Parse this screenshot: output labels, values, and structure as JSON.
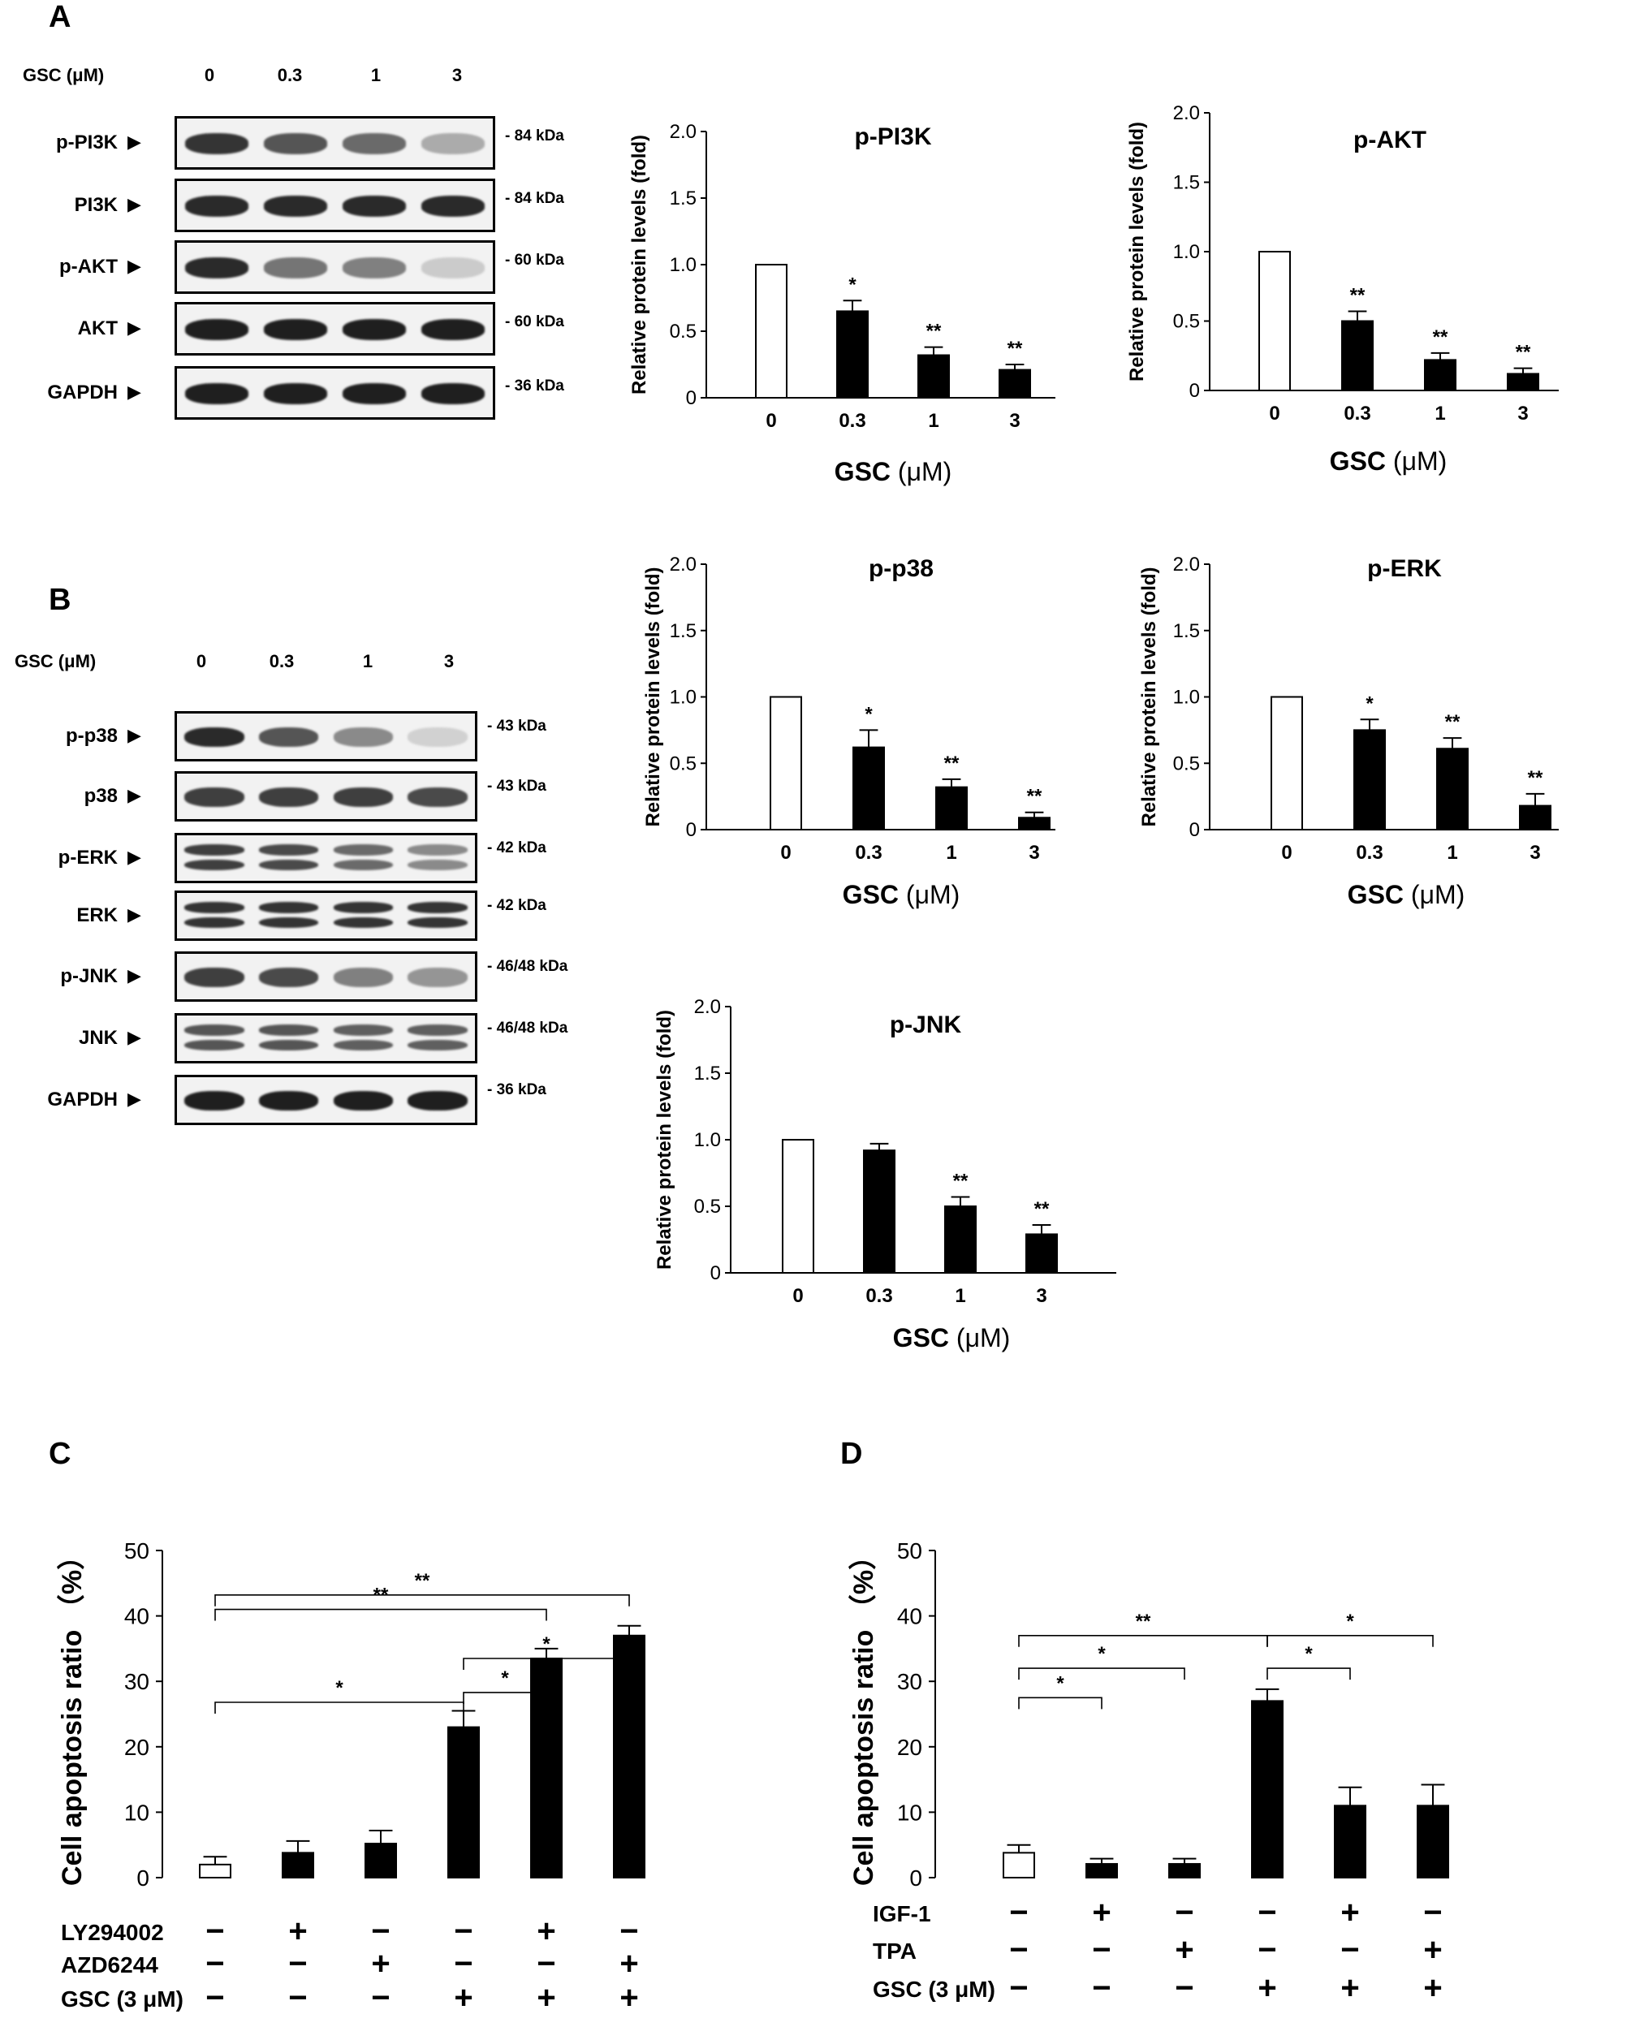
{
  "panels": {
    "A": "A",
    "B": "B",
    "C": "C",
    "D": "D"
  },
  "blot_a": {
    "gsc_label": "GSC (μM)",
    "conc": [
      "0",
      "0.3",
      "1",
      "3"
    ],
    "rows": [
      {
        "name": "p-PI3K",
        "kda": "- 84 kDa",
        "intensity": [
          0.85,
          0.7,
          0.6,
          0.3
        ],
        "double": false
      },
      {
        "name": "PI3K",
        "kda": "- 84 kDa",
        "intensity": [
          0.9,
          0.9,
          0.9,
          0.9
        ],
        "double": false
      },
      {
        "name": "p-AKT",
        "kda": "- 60 kDa",
        "intensity": [
          0.9,
          0.55,
          0.5,
          0.15
        ],
        "double": false
      },
      {
        "name": "AKT",
        "kda": "- 60 kDa",
        "intensity": [
          0.95,
          0.95,
          0.95,
          0.95
        ],
        "double": false
      },
      {
        "name": "GAPDH",
        "kda": "- 36 kDa",
        "intensity": [
          0.95,
          0.95,
          0.95,
          0.95
        ],
        "double": false
      }
    ]
  },
  "blot_b": {
    "gsc_label": "GSC (μM)",
    "conc": [
      "0",
      "0.3",
      "1",
      "3"
    ],
    "rows": [
      {
        "name": "p-p38",
        "kda": "- 43 kDa",
        "intensity": [
          0.9,
          0.7,
          0.45,
          0.12
        ],
        "double": false
      },
      {
        "name": "p38",
        "kda": "- 43 kDa",
        "intensity": [
          0.8,
          0.8,
          0.8,
          0.75
        ],
        "double": false
      },
      {
        "name": "p-ERK",
        "kda": "- 42 kDa",
        "intensity": [
          0.8,
          0.75,
          0.6,
          0.45
        ],
        "double": true
      },
      {
        "name": "ERK",
        "kda": "- 42 kDa",
        "intensity": [
          0.85,
          0.85,
          0.85,
          0.85
        ],
        "double": true
      },
      {
        "name": "p-JNK",
        "kda": "- 46/48 kDa",
        "intensity": [
          0.8,
          0.75,
          0.5,
          0.4
        ],
        "double": false
      },
      {
        "name": "JNK",
        "kda": "- 46/48 kDa",
        "intensity": [
          0.7,
          0.7,
          0.65,
          0.65
        ],
        "double": true
      },
      {
        "name": "GAPDH",
        "kda": "- 36 kDa",
        "intensity": [
          0.95,
          0.95,
          0.95,
          0.95
        ],
        "double": false
      }
    ]
  },
  "bar_charts_common": {
    "ylabel": "Relative protein levels (fold)",
    "xlabel_bold": "GSC",
    "xlabel_unit": "(μM)"
  },
  "chart_data": [
    {
      "id": "p-PI3K",
      "type": "bar",
      "title": "p-PI3K",
      "categories": [
        "0",
        "0.3",
        "1",
        "3"
      ],
      "values": [
        1.0,
        0.65,
        0.32,
        0.21
      ],
      "errors": [
        0,
        0.08,
        0.06,
        0.04
      ],
      "sig": [
        "",
        "*",
        "**",
        "**"
      ],
      "ylim": [
        0,
        2.0
      ],
      "yticks": [
        "0",
        "0.5",
        "1.0",
        "1.5",
        "2.0"
      ],
      "ylabel": "Relative protein levels (fold)",
      "xlabel": "GSC (μM)",
      "fill": [
        "#ffffff",
        "#000000",
        "#000000",
        "#000000"
      ]
    },
    {
      "id": "p-AKT",
      "type": "bar",
      "title": "p-AKT",
      "categories": [
        "0",
        "0.3",
        "1",
        "3"
      ],
      "values": [
        1.0,
        0.5,
        0.22,
        0.12
      ],
      "errors": [
        0,
        0.07,
        0.05,
        0.04
      ],
      "sig": [
        "",
        "**",
        "**",
        "**"
      ],
      "ylim": [
        0,
        2.0
      ],
      "yticks": [
        "0",
        "0.5",
        "1.0",
        "1.5",
        "2.0"
      ],
      "ylabel": "Relative protein levels (fold)",
      "xlabel": "GSC (μM)",
      "fill": [
        "#ffffff",
        "#000000",
        "#000000",
        "#000000"
      ]
    },
    {
      "id": "p-p38",
      "type": "bar",
      "title": "p-p38",
      "categories": [
        "0",
        "0.3",
        "1",
        "3"
      ],
      "values": [
        1.0,
        0.62,
        0.32,
        0.09
      ],
      "errors": [
        0,
        0.13,
        0.06,
        0.04
      ],
      "sig": [
        "",
        "*",
        "**",
        "**"
      ],
      "ylim": [
        0,
        2.0
      ],
      "yticks": [
        "0",
        "0.5",
        "1.0",
        "1.5",
        "2.0"
      ],
      "ylabel": "Relative protein levels (fold)",
      "xlabel": "GSC (μM)",
      "fill": [
        "#ffffff",
        "#000000",
        "#000000",
        "#000000"
      ]
    },
    {
      "id": "p-ERK",
      "type": "bar",
      "title": "p-ERK",
      "categories": [
        "0",
        "0.3",
        "1",
        "3"
      ],
      "values": [
        1.0,
        0.75,
        0.61,
        0.18
      ],
      "errors": [
        0,
        0.08,
        0.08,
        0.09
      ],
      "sig": [
        "",
        "*",
        "**",
        "**"
      ],
      "ylim": [
        0,
        2.0
      ],
      "yticks": [
        "0",
        "0.5",
        "1.0",
        "1.5",
        "2.0"
      ],
      "ylabel": "Relative protein levels (fold)",
      "xlabel": "GSC (μM)",
      "fill": [
        "#ffffff",
        "#000000",
        "#000000",
        "#000000"
      ]
    },
    {
      "id": "p-JNK",
      "type": "bar",
      "title": "p-JNK",
      "categories": [
        "0",
        "0.3",
        "1",
        "3"
      ],
      "values": [
        1.0,
        0.92,
        0.5,
        0.29
      ],
      "errors": [
        0,
        0.05,
        0.07,
        0.07
      ],
      "sig": [
        "",
        "",
        "**",
        "**"
      ],
      "ylim": [
        0,
        2.0
      ],
      "yticks": [
        "0",
        "0.5",
        "1.0",
        "1.5",
        "2.0"
      ],
      "ylabel": "Relative protein levels (fold)",
      "xlabel": "GSC (μM)",
      "fill": [
        "#ffffff",
        "#000000",
        "#000000",
        "#000000"
      ]
    },
    {
      "id": "C",
      "type": "bar",
      "title": "",
      "categories": [
        "1",
        "2",
        "3",
        "4",
        "5",
        "6"
      ],
      "values": [
        2.0,
        3.8,
        5.2,
        23.0,
        33.5,
        37.0
      ],
      "errors": [
        1.2,
        1.8,
        2.0,
        2.5,
        1.5,
        1.5
      ],
      "ylim": [
        0,
        50
      ],
      "yticks": [
        "0",
        "10",
        "20",
        "30",
        "40",
        "50"
      ],
      "ylabel": "Cell apoptosis ratio （%）",
      "fill": [
        "#ffffff",
        "#000000",
        "#000000",
        "#000000",
        "#000000",
        "#000000"
      ],
      "treatments": [
        {
          "label": "LY294002",
          "signs": [
            "−",
            "+",
            "−",
            "−",
            "+",
            "−"
          ]
        },
        {
          "label": "AZD6244",
          "signs": [
            "−",
            "−",
            "+",
            "−",
            "−",
            "+"
          ]
        },
        {
          "label": "GSC (3 μM)",
          "signs": [
            "−",
            "−",
            "−",
            "+",
            "+",
            "+"
          ]
        }
      ],
      "brackets": [
        {
          "from": 0,
          "to": 5,
          "level": 43.2,
          "label": "**"
        },
        {
          "from": 0,
          "to": 4,
          "level": 41.0,
          "label": "**"
        },
        {
          "from": 3,
          "to": 5,
          "level": 33.5,
          "label": "*"
        },
        {
          "from": 3,
          "to": 4,
          "level": 28.3,
          "label": "*"
        },
        {
          "from": 0,
          "to": 3,
          "level": 26.8,
          "label": "*"
        }
      ]
    },
    {
      "id": "D",
      "type": "bar",
      "title": "",
      "categories": [
        "1",
        "2",
        "3",
        "4",
        "5",
        "6"
      ],
      "values": [
        3.8,
        2.1,
        2.1,
        27.0,
        11.0,
        11.0
      ],
      "errors": [
        1.2,
        0.8,
        0.8,
        1.8,
        2.8,
        3.2
      ],
      "ylim": [
        0,
        50
      ],
      "yticks": [
        "0",
        "10",
        "20",
        "30",
        "40",
        "50"
      ],
      "ylabel": "Cell apoptosis ratio （%）",
      "fill": [
        "#ffffff",
        "#000000",
        "#000000",
        "#000000",
        "#000000",
        "#000000"
      ],
      "treatments": [
        {
          "label": "IGF-1",
          "signs": [
            "−",
            "+",
            "−",
            "−",
            "+",
            "−"
          ]
        },
        {
          "label": "TPA",
          "signs": [
            "−",
            "−",
            "+",
            "−",
            "−",
            "+"
          ]
        },
        {
          "label": "GSC (3 μM)",
          "signs": [
            "−",
            "−",
            "−",
            "+",
            "+",
            "+"
          ]
        }
      ],
      "brackets": [
        {
          "from": 0,
          "to": 3,
          "level": 37.0,
          "label": "**"
        },
        {
          "from": 3,
          "to": 5,
          "level": 37.0,
          "label": "*"
        },
        {
          "from": 0,
          "to": 2,
          "level": 32.0,
          "label": "*"
        },
        {
          "from": 3,
          "to": 4,
          "level": 32.0,
          "label": "*"
        },
        {
          "from": 0,
          "to": 1,
          "level": 27.5,
          "label": "*"
        }
      ]
    }
  ]
}
